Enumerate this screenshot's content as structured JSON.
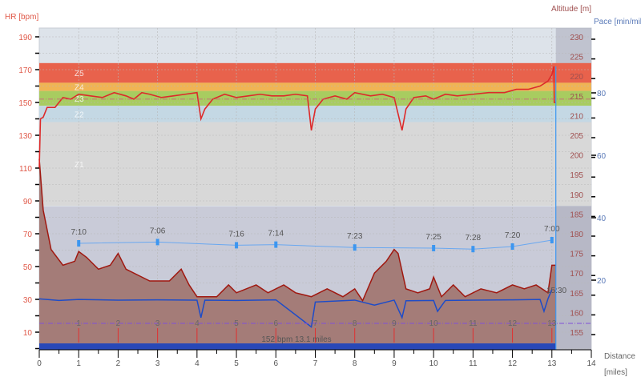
{
  "chart_data": {
    "type": "line",
    "axes": {
      "left": {
        "label": "HR [bpm]",
        "ticks": [
          190,
          170,
          150,
          130,
          110,
          90,
          70,
          50,
          30,
          10
        ],
        "range": [
          0,
          195
        ],
        "color": "#e05a4a"
      },
      "right_altitude": {
        "label": "Altitude [m]",
        "ticks": [
          230,
          225,
          220,
          215,
          210,
          205,
          200,
          195,
          190,
          185,
          180,
          175,
          170,
          165,
          160,
          155
        ],
        "color": "#a05050"
      },
      "right_pace": {
        "label": "Pace [min/mile]",
        "ticks": [
          80,
          60,
          40,
          20
        ],
        "color": "#5a7ab8"
      },
      "x": {
        "label_line1": "Distance",
        "label_line2": "[miles]",
        "ticks": [
          0,
          1,
          2,
          3,
          4,
          5,
          6,
          7,
          8,
          9,
          10,
          11,
          12,
          13,
          14
        ],
        "range": [
          0,
          14
        ]
      }
    },
    "hr_zones": [
      {
        "name": "Z5",
        "from": 162,
        "to": 174,
        "color": "#e8624c"
      },
      {
        "name": "Z4",
        "from": 157,
        "to": 162,
        "color": "#f0b454"
      },
      {
        "name": "Z3",
        "from": 148,
        "to": 157,
        "color": "#a8cc60"
      },
      {
        "name": "Z2",
        "from": 138,
        "to": 148,
        "color": "#c4d8e4"
      },
      {
        "name": "Z1",
        "from": 87,
        "to": 138,
        "color": "#d8d8d8"
      }
    ],
    "hr_series": [
      [
        0,
        110
      ],
      [
        0.03,
        140
      ],
      [
        0.1,
        141
      ],
      [
        0.2,
        147
      ],
      [
        0.4,
        147
      ],
      [
        0.5,
        150
      ],
      [
        0.6,
        153
      ],
      [
        0.8,
        152
      ],
      [
        1.0,
        155
      ],
      [
        1.3,
        154
      ],
      [
        1.6,
        153
      ],
      [
        1.9,
        156
      ],
      [
        2.2,
        154
      ],
      [
        2.4,
        152
      ],
      [
        2.6,
        156
      ],
      [
        2.8,
        155
      ],
      [
        3.1,
        153
      ],
      [
        3.4,
        154
      ],
      [
        3.7,
        155
      ],
      [
        4.0,
        156
      ],
      [
        4.1,
        140
      ],
      [
        4.2,
        146
      ],
      [
        4.4,
        152
      ],
      [
        4.7,
        155
      ],
      [
        5.0,
        153
      ],
      [
        5.3,
        154
      ],
      [
        5.6,
        155
      ],
      [
        5.9,
        154
      ],
      [
        6.2,
        154
      ],
      [
        6.5,
        155
      ],
      [
        6.8,
        154
      ],
      [
        6.9,
        133
      ],
      [
        7.0,
        146
      ],
      [
        7.2,
        152
      ],
      [
        7.5,
        154
      ],
      [
        7.8,
        152
      ],
      [
        8.0,
        156
      ],
      [
        8.4,
        154
      ],
      [
        8.7,
        155
      ],
      [
        9.0,
        153
      ],
      [
        9.2,
        133
      ],
      [
        9.3,
        146
      ],
      [
        9.5,
        153
      ],
      [
        9.8,
        154
      ],
      [
        10.0,
        152
      ],
      [
        10.3,
        155
      ],
      [
        10.6,
        154
      ],
      [
        11.0,
        155
      ],
      [
        11.4,
        156
      ],
      [
        11.8,
        156
      ],
      [
        12.1,
        158
      ],
      [
        12.4,
        158
      ],
      [
        12.7,
        160
      ],
      [
        12.9,
        163
      ],
      [
        13.0,
        167
      ],
      [
        13.05,
        172
      ],
      [
        13.06,
        150
      ],
      [
        13.1,
        150
      ]
    ],
    "altitude_series": [
      [
        0,
        199
      ],
      [
        0.1,
        186
      ],
      [
        0.3,
        176
      ],
      [
        0.6,
        172
      ],
      [
        0.9,
        173
      ],
      [
        1.0,
        175.5
      ],
      [
        1.2,
        174
      ],
      [
        1.5,
        171
      ],
      [
        1.8,
        172
      ],
      [
        2.0,
        175
      ],
      [
        2.2,
        171
      ],
      [
        2.6,
        169
      ],
      [
        2.8,
        168
      ],
      [
        3.3,
        168
      ],
      [
        3.6,
        171
      ],
      [
        3.8,
        167
      ],
      [
        4.0,
        164
      ],
      [
        4.5,
        164
      ],
      [
        4.8,
        167
      ],
      [
        5.0,
        165
      ],
      [
        5.5,
        167
      ],
      [
        5.8,
        165
      ],
      [
        6.2,
        167
      ],
      [
        6.5,
        165
      ],
      [
        6.9,
        164
      ],
      [
        7.3,
        166
      ],
      [
        7.7,
        164
      ],
      [
        8.0,
        166
      ],
      [
        8.2,
        163
      ],
      [
        8.5,
        170
      ],
      [
        8.8,
        173
      ],
      [
        9.0,
        176
      ],
      [
        9.1,
        175
      ],
      [
        9.3,
        166
      ],
      [
        9.6,
        165
      ],
      [
        9.9,
        166
      ],
      [
        10.0,
        169
      ],
      [
        10.2,
        164
      ],
      [
        10.5,
        167
      ],
      [
        10.8,
        164
      ],
      [
        11.2,
        166
      ],
      [
        11.6,
        165
      ],
      [
        12.0,
        167
      ],
      [
        12.3,
        166
      ],
      [
        12.6,
        167
      ],
      [
        12.9,
        165
      ],
      [
        13.0,
        172
      ],
      [
        13.1,
        172
      ]
    ],
    "pace_series": [
      [
        0,
        14
      ],
      [
        0.5,
        13.5
      ],
      [
        1,
        13.8
      ],
      [
        2,
        13.6
      ],
      [
        3,
        13.7
      ],
      [
        4,
        13.6
      ],
      [
        4.1,
        8
      ],
      [
        4.2,
        13.6
      ],
      [
        5,
        13.5
      ],
      [
        6,
        13.7
      ],
      [
        6.9,
        5
      ],
      [
        7.0,
        13
      ],
      [
        8,
        13.6
      ],
      [
        8.5,
        12
      ],
      [
        9,
        13.6
      ],
      [
        9.2,
        8
      ],
      [
        9.3,
        13.4
      ],
      [
        10,
        13.5
      ],
      [
        10.1,
        10
      ],
      [
        10.3,
        13.5
      ],
      [
        11,
        13.6
      ],
      [
        12,
        13.7
      ],
      [
        12.7,
        13.8
      ],
      [
        12.8,
        10
      ],
      [
        12.9,
        14
      ],
      [
        13.0,
        17
      ]
    ],
    "splits": {
      "miles": [
        1,
        3,
        5,
        6,
        8,
        10,
        11,
        12,
        13
      ],
      "labels": [
        "7:10",
        "7:06",
        "7:16",
        "7:14",
        "7:23",
        "7:25",
        "7:28",
        "7:20",
        "7:00"
      ],
      "pace_seconds": [
        430,
        426,
        436,
        434,
        443,
        445,
        448,
        440,
        420
      ]
    },
    "mile_markers": [
      "1",
      "2",
      "3",
      "4",
      "5",
      "6",
      "7",
      "8",
      "9",
      "10",
      "11",
      "12",
      "13"
    ],
    "summary_label": "152 bpm 13.1 miles",
    "end_time_label": "15:30",
    "data_end_mile": 13.1
  }
}
